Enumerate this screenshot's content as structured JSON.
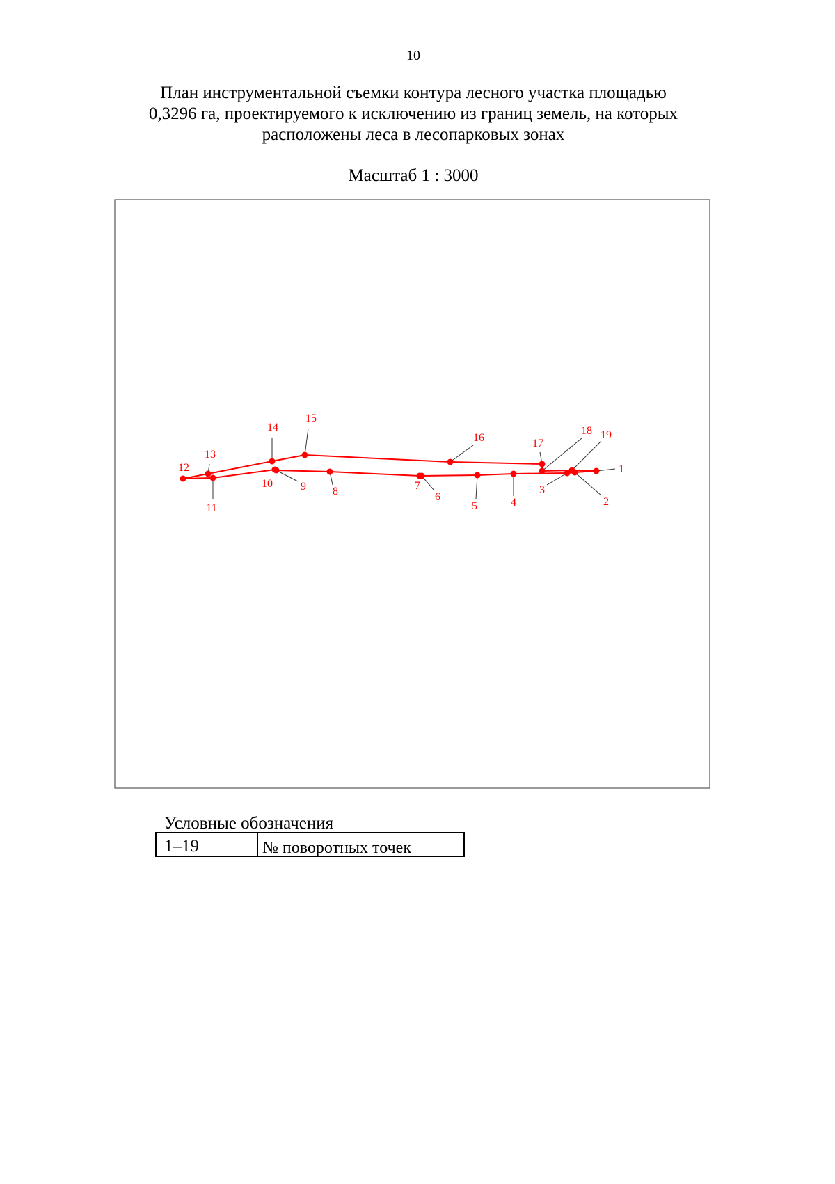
{
  "page_number": "10",
  "title": [
    "План инструментальной съемки контура лесного участка площадью",
    "0,3296 га, проектируемого к исключению из границ земель, на которых",
    "расположены леса в лесопарковых зонах"
  ],
  "scale": "Масштаб 1 : 3000",
  "points": [
    {
      "label": "1"
    },
    {
      "label": "2"
    },
    {
      "label": "3"
    },
    {
      "label": "4"
    },
    {
      "label": "5"
    },
    {
      "label": "6"
    },
    {
      "label": "7"
    },
    {
      "label": "8"
    },
    {
      "label": "9"
    },
    {
      "label": "10"
    },
    {
      "label": "11"
    },
    {
      "label": "12"
    },
    {
      "label": "13"
    },
    {
      "label": "14"
    },
    {
      "label": "15"
    },
    {
      "label": "16"
    },
    {
      "label": "17"
    },
    {
      "label": "18"
    },
    {
      "label": "19"
    }
  ],
  "legend": {
    "title": "Условные обозначения",
    "rows": [
      [
        "1–19",
        "№ поворотных точек"
      ]
    ]
  }
}
